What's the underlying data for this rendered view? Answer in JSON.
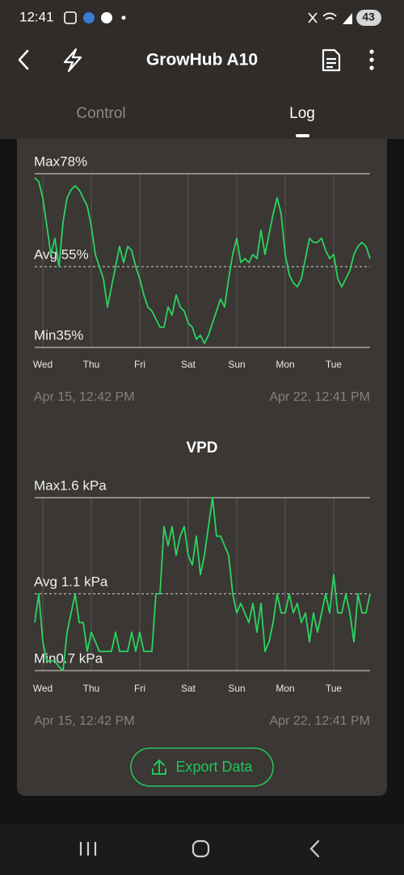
{
  "status_bar": {
    "time": "12:41",
    "battery": "43"
  },
  "header": {
    "title": "GrowHub A10"
  },
  "tabs": [
    "Control",
    "Log"
  ],
  "chart_data": [
    {
      "type": "line",
      "categories": [
        null,
        null,
        "Wed",
        null,
        null,
        null,
        null,
        null,
        null,
        null,
        null,
        null,
        null,
        null,
        "Thu",
        null,
        null,
        null,
        null,
        null,
        null,
        null,
        null,
        null,
        null,
        null,
        "Fri",
        null,
        null,
        null,
        null,
        null,
        null,
        null,
        null,
        null,
        null,
        null,
        "Sat",
        null,
        null,
        null,
        null,
        null,
        null,
        null,
        null,
        null,
        null,
        null,
        "Sun",
        null,
        null,
        null,
        null,
        null,
        null,
        null,
        null,
        null,
        null,
        null,
        "Mon",
        null,
        null,
        null,
        null,
        null,
        null,
        null,
        null,
        null,
        null,
        null,
        "Tue",
        null,
        null,
        null,
        null,
        null,
        null,
        null,
        null,
        null
      ],
      "values": [
        77,
        76,
        72,
        65,
        58,
        62,
        55,
        66,
        72,
        74,
        75,
        74,
        72,
        70,
        65,
        58,
        55,
        52,
        45,
        50,
        55,
        60,
        56,
        60,
        59,
        55,
        52,
        48,
        45,
        44,
        42,
        40,
        40,
        45,
        43,
        48,
        45,
        44,
        41,
        40,
        37,
        38,
        36,
        38,
        41,
        44,
        47,
        45,
        52,
        58,
        62,
        56,
        57,
        56,
        58,
        57,
        64,
        58,
        63,
        68,
        72,
        68,
        58,
        53,
        51,
        50,
        52,
        57,
        62,
        61,
        61,
        62,
        59,
        57,
        58,
        52,
        50,
        52,
        54,
        58,
        60,
        61,
        60,
        57
      ],
      "color": "#2bd45f",
      "ylim": [
        35,
        78
      ],
      "yticks": [
        {
          "value": 35,
          "label": "Min35%"
        },
        {
          "value": 55,
          "label": "Avg 55%"
        },
        {
          "value": 78,
          "label": "Max78%"
        }
      ],
      "xgrid": true,
      "start_time": "Apr 15, 12:42 PM",
      "end_time": "Apr 22, 12:41 PM"
    },
    {
      "type": "line",
      "title": "VPD",
      "categories": [
        null,
        null,
        "Wed",
        null,
        null,
        null,
        null,
        null,
        null,
        null,
        null,
        null,
        null,
        null,
        "Thu",
        null,
        null,
        null,
        null,
        null,
        null,
        null,
        null,
        null,
        null,
        null,
        "Fri",
        null,
        null,
        null,
        null,
        null,
        null,
        null,
        null,
        null,
        null,
        null,
        "Sat",
        null,
        null,
        null,
        null,
        null,
        null,
        null,
        null,
        null,
        null,
        null,
        "Sun",
        null,
        null,
        null,
        null,
        null,
        null,
        null,
        null,
        null,
        null,
        null,
        "Mon",
        null,
        null,
        null,
        null,
        null,
        null,
        null,
        null,
        null,
        null,
        null,
        "Tue",
        null,
        null,
        null,
        null,
        null,
        null,
        null,
        null,
        null
      ],
      "values": [
        0.95,
        1.1,
        0.85,
        0.75,
        0.75,
        0.75,
        0.72,
        0.7,
        0.9,
        1.0,
        1.1,
        0.95,
        0.95,
        0.8,
        0.9,
        0.85,
        0.8,
        0.8,
        0.8,
        0.8,
        0.9,
        0.8,
        0.8,
        0.8,
        0.9,
        0.8,
        0.9,
        0.8,
        0.8,
        0.8,
        1.1,
        1.1,
        1.45,
        1.35,
        1.45,
        1.3,
        1.4,
        1.45,
        1.3,
        1.25,
        1.4,
        1.2,
        1.3,
        1.45,
        1.6,
        1.4,
        1.4,
        1.35,
        1.3,
        1.1,
        1.0,
        1.05,
        1.0,
        0.95,
        1.05,
        0.9,
        1.05,
        0.8,
        0.85,
        0.95,
        1.1,
        1.0,
        1.0,
        1.1,
        1.0,
        1.05,
        0.95,
        1.0,
        0.85,
        1.0,
        0.9,
        1.0,
        1.1,
        1.0,
        1.2,
        1.0,
        1.0,
        1.1,
        1.0,
        0.85,
        1.1,
        1.0,
        1.0,
        1.1
      ],
      "color": "#2bd45f",
      "ylim": [
        0.7,
        1.6
      ],
      "yticks": [
        {
          "value": 0.7,
          "label": "Min0.7 kPa"
        },
        {
          "value": 1.1,
          "label": "Avg 1.1 kPa"
        },
        {
          "value": 1.6,
          "label": "Max1.6 kPa"
        }
      ],
      "xgrid": true,
      "start_time": "Apr 15, 12:42 PM",
      "end_time": "Apr 22, 12:41 PM"
    }
  ],
  "export_button": "Export Data"
}
